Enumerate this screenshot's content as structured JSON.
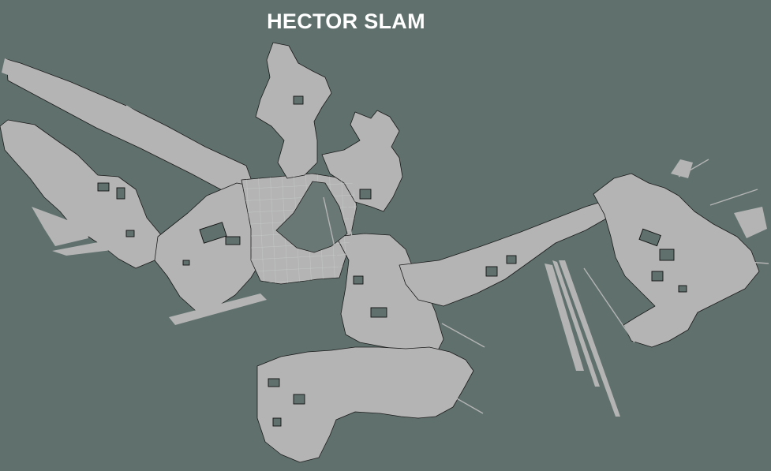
{
  "title": "HECTOR SLAM",
  "colors": {
    "background_unknown": "#5f706d",
    "free_space": "#b4b4b4",
    "obstacle_edge": "#151515",
    "grid_line": "#9aa3a1"
  },
  "layers": {
    "occupancy_grid": "occupancy-grid",
    "grid_overlay": "grid-overlay",
    "laser_rays": "laser-rays",
    "obstacles": "obstacle-clusters"
  }
}
